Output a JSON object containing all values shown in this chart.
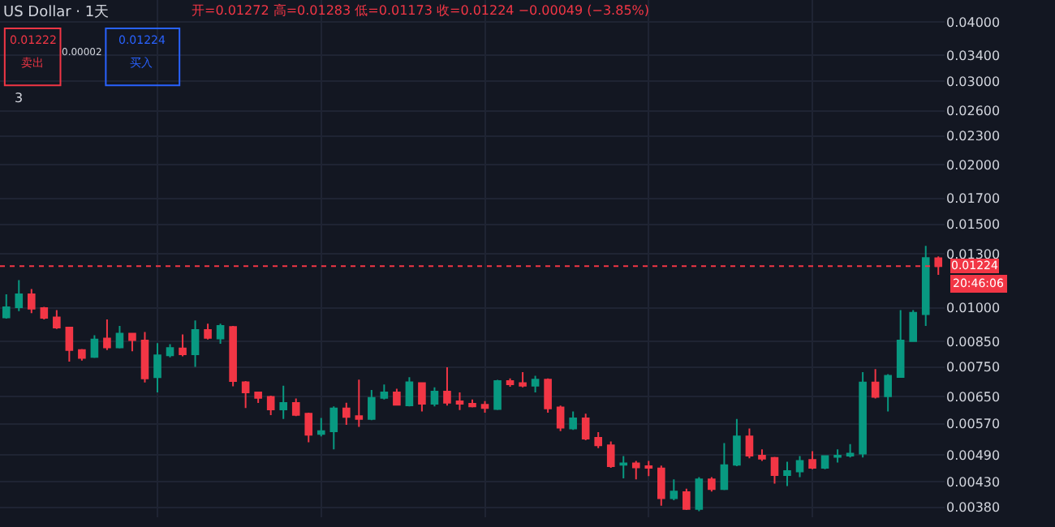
{
  "chart_data": {
    "type": "candlestick",
    "title": "US Dollar · 1天",
    "categories": [
      null,
      null,
      null,
      null,
      null,
      null,
      null,
      null,
      null,
      null,
      null,
      null,
      null,
      null,
      null,
      null,
      null,
      null,
      null,
      null,
      null,
      null,
      null,
      null,
      null,
      null,
      null,
      null,
      null,
      null,
      null,
      null,
      null,
      null,
      null,
      null,
      null,
      null,
      null,
      null,
      null,
      null,
      null,
      null,
      null,
      null,
      null,
      null,
      null,
      null,
      null,
      null,
      null,
      null,
      null,
      null,
      null,
      null,
      null,
      null,
      null,
      null,
      null,
      null,
      null,
      null,
      null,
      null,
      null,
      null,
      null,
      null,
      null,
      null,
      null
    ],
    "ohlc": [
      [
        0.00954,
        0.01068,
        0.00949,
        0.01002
      ],
      [
        0.01002,
        0.01144,
        0.00984,
        0.01068
      ],
      [
        0.01068,
        0.01095,
        0.00974,
        0.00996
      ],
      [
        0.00999,
        0.01004,
        0.00945,
        0.00952
      ],
      [
        0.00954,
        0.00989,
        0.00902,
        0.00909
      ],
      [
        0.00909,
        0.00911,
        0.0077,
        0.00815
      ],
      [
        0.00815,
        0.00819,
        0.00774,
        0.00784
      ],
      [
        0.00788,
        0.00875,
        0.00784,
        0.00857
      ],
      [
        0.00862,
        0.00945,
        0.00815,
        0.00825
      ],
      [
        0.00825,
        0.00916,
        0.00821,
        0.00882
      ],
      [
        0.00882,
        0.00886,
        0.0081,
        0.00855
      ],
      [
        0.00853,
        0.00889,
        0.00696,
        0.0071
      ],
      [
        0.00714,
        0.00842,
        0.00663,
        0.00794
      ],
      [
        0.00794,
        0.00838,
        0.00786,
        0.00823
      ],
      [
        0.00821,
        0.00879,
        0.0079,
        0.00798
      ],
      [
        0.00798,
        0.0094,
        0.00751,
        0.00898
      ],
      [
        0.00898,
        0.00926,
        0.00857,
        0.00864
      ],
      [
        0.00862,
        0.00926,
        0.0084,
        0.00916
      ],
      [
        0.00911,
        0.00916,
        0.00683,
        0.00701
      ],
      [
        0.00697,
        0.00701,
        0.00615,
        0.00663
      ],
      [
        0.00663,
        0.00666,
        0.0063,
        0.00646
      ],
      [
        0.00649,
        0.00653,
        0.00594,
        0.00611
      ],
      [
        0.00611,
        0.00685,
        0.00583,
        0.0063
      ],
      [
        0.0063,
        0.00644,
        0.00591,
        0.00595
      ],
      [
        0.00598,
        0.00601,
        0.00521,
        0.0054
      ],
      [
        0.00542,
        0.00586,
        0.00536,
        0.0055
      ],
      [
        0.00549,
        0.0062,
        0.00503,
        0.00614
      ],
      [
        0.00614,
        0.00631,
        0.00567,
        0.00589
      ],
      [
        0.00591,
        0.00706,
        0.00561,
        0.00583
      ],
      [
        0.00583,
        0.00671,
        0.0058,
        0.00646
      ],
      [
        0.00646,
        0.00689,
        0.00641,
        0.00663
      ],
      [
        0.00663,
        0.00675,
        0.00622,
        0.00625
      ],
      [
        0.00623,
        0.00714,
        0.0062,
        0.00697
      ],
      [
        0.00694,
        0.00696,
        0.00605,
        0.00628
      ],
      [
        0.00628,
        0.0068,
        0.0062,
        0.00666
      ],
      [
        0.00666,
        0.00749,
        0.00622,
        0.00631
      ],
      [
        0.00635,
        0.00663,
        0.00609,
        0.00628
      ],
      [
        0.00628,
        0.00641,
        0.00617,
        0.0062
      ],
      [
        0.00625,
        0.00636,
        0.00601,
        0.00615
      ],
      [
        0.00612,
        0.00705,
        0.00609,
        0.00701
      ],
      [
        0.00701,
        0.0071,
        0.00682,
        0.0069
      ],
      [
        0.00694,
        0.00732,
        0.0068,
        0.00685
      ],
      [
        0.00685,
        0.00719,
        0.00663,
        0.00706
      ],
      [
        0.00706,
        0.0071,
        0.00601,
        0.00614
      ],
      [
        0.00617,
        0.00622,
        0.0055,
        0.00559
      ],
      [
        0.00557,
        0.00605,
        0.00553,
        0.00585
      ],
      [
        0.00585,
        0.00598,
        0.00526,
        0.0053
      ],
      [
        0.00532,
        0.00547,
        0.00506,
        0.00513
      ],
      [
        0.00513,
        0.00523,
        0.0046,
        0.00464
      ],
      [
        0.00467,
        0.00487,
        0.00437,
        0.0047
      ],
      [
        0.0047,
        0.00476,
        0.00435,
        0.00461
      ],
      [
        0.00464,
        0.00476,
        0.00442,
        0.0046
      ],
      [
        0.00459,
        0.00465,
        0.00383,
        0.00397
      ],
      [
        0.00397,
        0.00435,
        0.00393,
        0.0041
      ],
      [
        0.00409,
        0.00416,
        0.00375,
        0.00377
      ],
      [
        0.00377,
        0.0044,
        0.00373,
        0.00435
      ],
      [
        0.00435,
        0.0044,
        0.0041,
        0.00415
      ],
      [
        0.00415,
        0.00519,
        0.00413,
        0.00466
      ],
      [
        0.00467,
        0.00583,
        0.00464,
        0.00536
      ],
      [
        0.00536,
        0.00557,
        0.00482,
        0.00488
      ],
      [
        0.00488,
        0.00503,
        0.00476,
        0.00481
      ],
      [
        0.00483,
        0.00485,
        0.00426,
        0.00444
      ],
      [
        0.00444,
        0.00474,
        0.00421,
        0.00453
      ],
      [
        0.00452,
        0.00487,
        0.0044,
        0.00476
      ],
      [
        0.00478,
        0.00499,
        0.00457,
        0.0046
      ],
      [
        0.0046,
        0.00489,
        0.00457,
        0.00487
      ],
      [
        0.00485,
        0.00503,
        0.00472,
        0.00488
      ],
      [
        0.00488,
        0.00516,
        0.00484,
        0.00493
      ],
      [
        0.00493,
        0.00732,
        0.00484,
        0.00696
      ],
      [
        0.00696,
        0.00743,
        0.00644,
        0.00649
      ],
      [
        0.00651,
        0.00725,
        0.00605,
        0.00719
      ],
      [
        0.00715,
        0.00989,
        0.00714,
        0.00853
      ],
      [
        0.00851,
        0.00989,
        0.00849,
        0.00976
      ],
      [
        0.00969,
        0.0135,
        0.00916,
        0.01273
      ],
      [
        0.01272,
        0.01283,
        0.01173,
        0.01224
      ]
    ],
    "colors": [
      "#089981",
      "#089981",
      "#f23645",
      "#f23645",
      "#f23645",
      "#f23645",
      "#f23645",
      "#089981",
      "#f23645",
      "#089981",
      "#f23645",
      "#f23645",
      "#089981",
      "#089981",
      "#f23645",
      "#089981",
      "#f23645",
      "#089981",
      "#f23645",
      "#f23645",
      "#f23645",
      "#f23645",
      "#089981",
      "#f23645",
      "#f23645",
      "#089981",
      "#089981",
      "#f23645",
      "#f23645",
      "#089981",
      "#089981",
      "#f23645",
      "#089981",
      "#f23645",
      "#089981",
      "#f23645",
      "#f23645",
      "#f23645",
      "#f23645",
      "#089981",
      "#f23645",
      "#f23645",
      "#089981",
      "#f23645",
      "#f23645",
      "#089981",
      "#f23645",
      "#f23645",
      "#f23645",
      "#089981",
      "#f23645",
      "#f23645",
      "#f23645",
      "#089981",
      "#f23645",
      "#089981",
      "#f23645",
      "#089981",
      "#089981",
      "#f23645",
      "#f23645",
      "#f23645",
      "#089981",
      "#089981",
      "#f23645",
      "#089981",
      "#089981",
      "#089981",
      "#089981",
      "#f23645",
      "#089981",
      "#089981",
      "#089981",
      "#089981",
      "#f23645"
    ],
    "log": true,
    "ylim": [
      0.00362,
      0.0445
    ],
    "yticks": [
      {
        "value": 0.04,
        "label": "0.04000"
      },
      {
        "value": 0.034,
        "label": "0.03400"
      },
      {
        "value": 0.03,
        "label": "0.03000"
      },
      {
        "value": 0.026,
        "label": "0.02600"
      },
      {
        "value": 0.023,
        "label": "0.02300"
      },
      {
        "value": 0.02,
        "label": "0.02000"
      },
      {
        "value": 0.017,
        "label": "0.01700"
      },
      {
        "value": 0.015,
        "label": "0.01500"
      },
      {
        "value": 0.013,
        "label": "0.01300"
      },
      {
        "value": 0.01,
        "label": "0.01000"
      },
      {
        "value": 0.0085,
        "label": "0.00850"
      },
      {
        "value": 0.0075,
        "label": "0.00750"
      },
      {
        "value": 0.0065,
        "label": "0.00650"
      },
      {
        "value": 0.0057,
        "label": "0.00570"
      },
      {
        "value": 0.0049,
        "label": "0.00490"
      },
      {
        "value": 0.0043,
        "label": "0.00430"
      },
      {
        "value": 0.0038,
        "label": "0.00380"
      }
    ],
    "tick_labels": "y",
    "grid": true,
    "ref_lines": [
      {
        "axis": "y",
        "value": 0.01224,
        "label": "0.01224",
        "color": "#f23645",
        "line_style": "dotted"
      }
    ],
    "annotations": [
      "开=0.01272 高=0.01283 低=0.01173 收=0.01224 −0.00049 (−3.85%)",
      "0.01222",
      "卖出",
      "0.00002",
      "0.01224",
      "买入",
      "3",
      "20:46:06"
    ]
  }
}
